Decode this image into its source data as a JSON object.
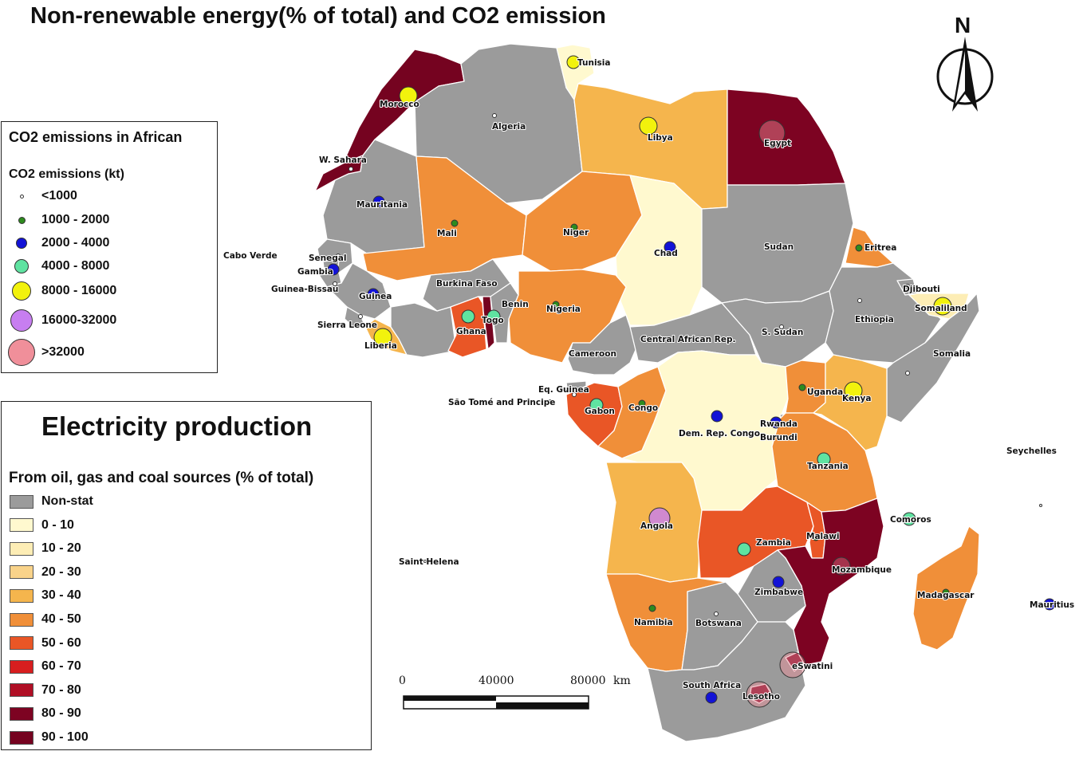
{
  "title": "Non-renewable energy(% of total) and CO2 emission",
  "north_label": "N",
  "colors": {
    "non_stat": "#9b9b9b",
    "c0_10": "#fff9cf",
    "c10_20": "#fdedb5",
    "c20_30": "#f9d38a",
    "c30_40": "#f5b54d",
    "c40_50": "#f08f39",
    "c50_60": "#e95626",
    "c60_70": "#d71e1f",
    "c70_80": "#b00f25",
    "c80_90": "#7d0322",
    "c90_100": "#750320"
  },
  "co2_legend": {
    "title": "CO2 emissions in African",
    "subtitle": "CO2 emissions (kt)",
    "classes": [
      {
        "label": "<1000",
        "color": "#ffffff"
      },
      {
        "label": "1000 - 2000",
        "color": "#2e8b1e"
      },
      {
        "label": "2000 - 4000",
        "color": "#1212d6"
      },
      {
        "label": "4000 - 8000",
        "color": "#5fe3a1"
      },
      {
        "label": "8000 - 16000",
        "color": "#f2f20d"
      },
      {
        "label": "16000-32000",
        "color": "#c77ef0"
      },
      {
        "label": ">32000",
        "color": "#f08f9a"
      }
    ]
  },
  "electricity_legend": {
    "title": "Electricity production",
    "subtitle": "From oil, gas and coal sources (% of total)",
    "classes": [
      {
        "label": "Non-stat",
        "color": "#9b9b9b"
      },
      {
        "label": "0 - 10",
        "color": "#fff9cf"
      },
      {
        "label": "10 - 20",
        "color": "#fdedb5"
      },
      {
        "label": "20 - 30",
        "color": "#f9d38a"
      },
      {
        "label": "30 - 40",
        "color": "#f5b54d"
      },
      {
        "label": "40 - 50",
        "color": "#f08f39"
      },
      {
        "label": "50 - 60",
        "color": "#e95626"
      },
      {
        "label": "60 - 70",
        "color": "#d71e1f"
      },
      {
        "label": "70 - 80",
        "color": "#b00f25"
      },
      {
        "label": "80 - 90",
        "color": "#7d0322"
      },
      {
        "label": "90 - 100",
        "color": "#750320"
      }
    ]
  },
  "scale_bar": {
    "labels": [
      "0",
      "40000",
      "80000"
    ],
    "unit": "km"
  },
  "countries": {
    "tunisia": "Tunisia",
    "morocco": "Morocco",
    "algeria": "Algeria",
    "libya": "Libya",
    "egypt": "Egypt",
    "w_sahara": "W. Sahara",
    "mauritania": "Mauritania",
    "mali": "Mali",
    "niger": "Niger",
    "chad": "Chad",
    "sudan": "Sudan",
    "eritrea": "Eritrea",
    "cabo_verde": "Cabo Verde",
    "senegal": "Senegal",
    "gambia": "Gambia",
    "guinea_bissau": "Guinea-Bissau",
    "guinea": "Guinea",
    "burkina_faso": "Burkina Faso",
    "benin": "Benin",
    "djibouti": "Djibouti",
    "somaliland": "Somaliland",
    "nigeria": "Nigeria",
    "ethiopia": "Ethiopia",
    "sierra_leone": "Sierra Leone",
    "togo": "Togo",
    "ghana": "Ghana",
    "liberia": "Liberia",
    "s_sudan": "S. Sudan",
    "car": "Central African Rep.",
    "somalia": "Somalia",
    "cameroon": "Cameroon",
    "eq_guinea": "Eq. Guinea",
    "uganda": "Uganda",
    "kenya": "Kenya",
    "sao_tome": "São Tomé and Principe",
    "gabon": "Gabon",
    "congo": "Congo",
    "rwanda": "Rwanda",
    "drc": "Dem. Rep. Congo",
    "burundi": "Burundi",
    "tanzania": "Tanzania",
    "seychelles": "Seychelles",
    "angola": "Angola",
    "comoros": "Comoros",
    "malawi": "Malawi",
    "zambia": "Zambia",
    "saint_helena": "Saint Helena",
    "mozambique": "Mozambique",
    "zimbabwe": "Zimbabwe",
    "madagascar": "Madagascar",
    "mauritius": "Mauritius",
    "namibia": "Namibia",
    "botswana": "Botswana",
    "eswatini": "eSwatini",
    "south_africa": "South Africa",
    "lesotho": "Lesotho"
  }
}
